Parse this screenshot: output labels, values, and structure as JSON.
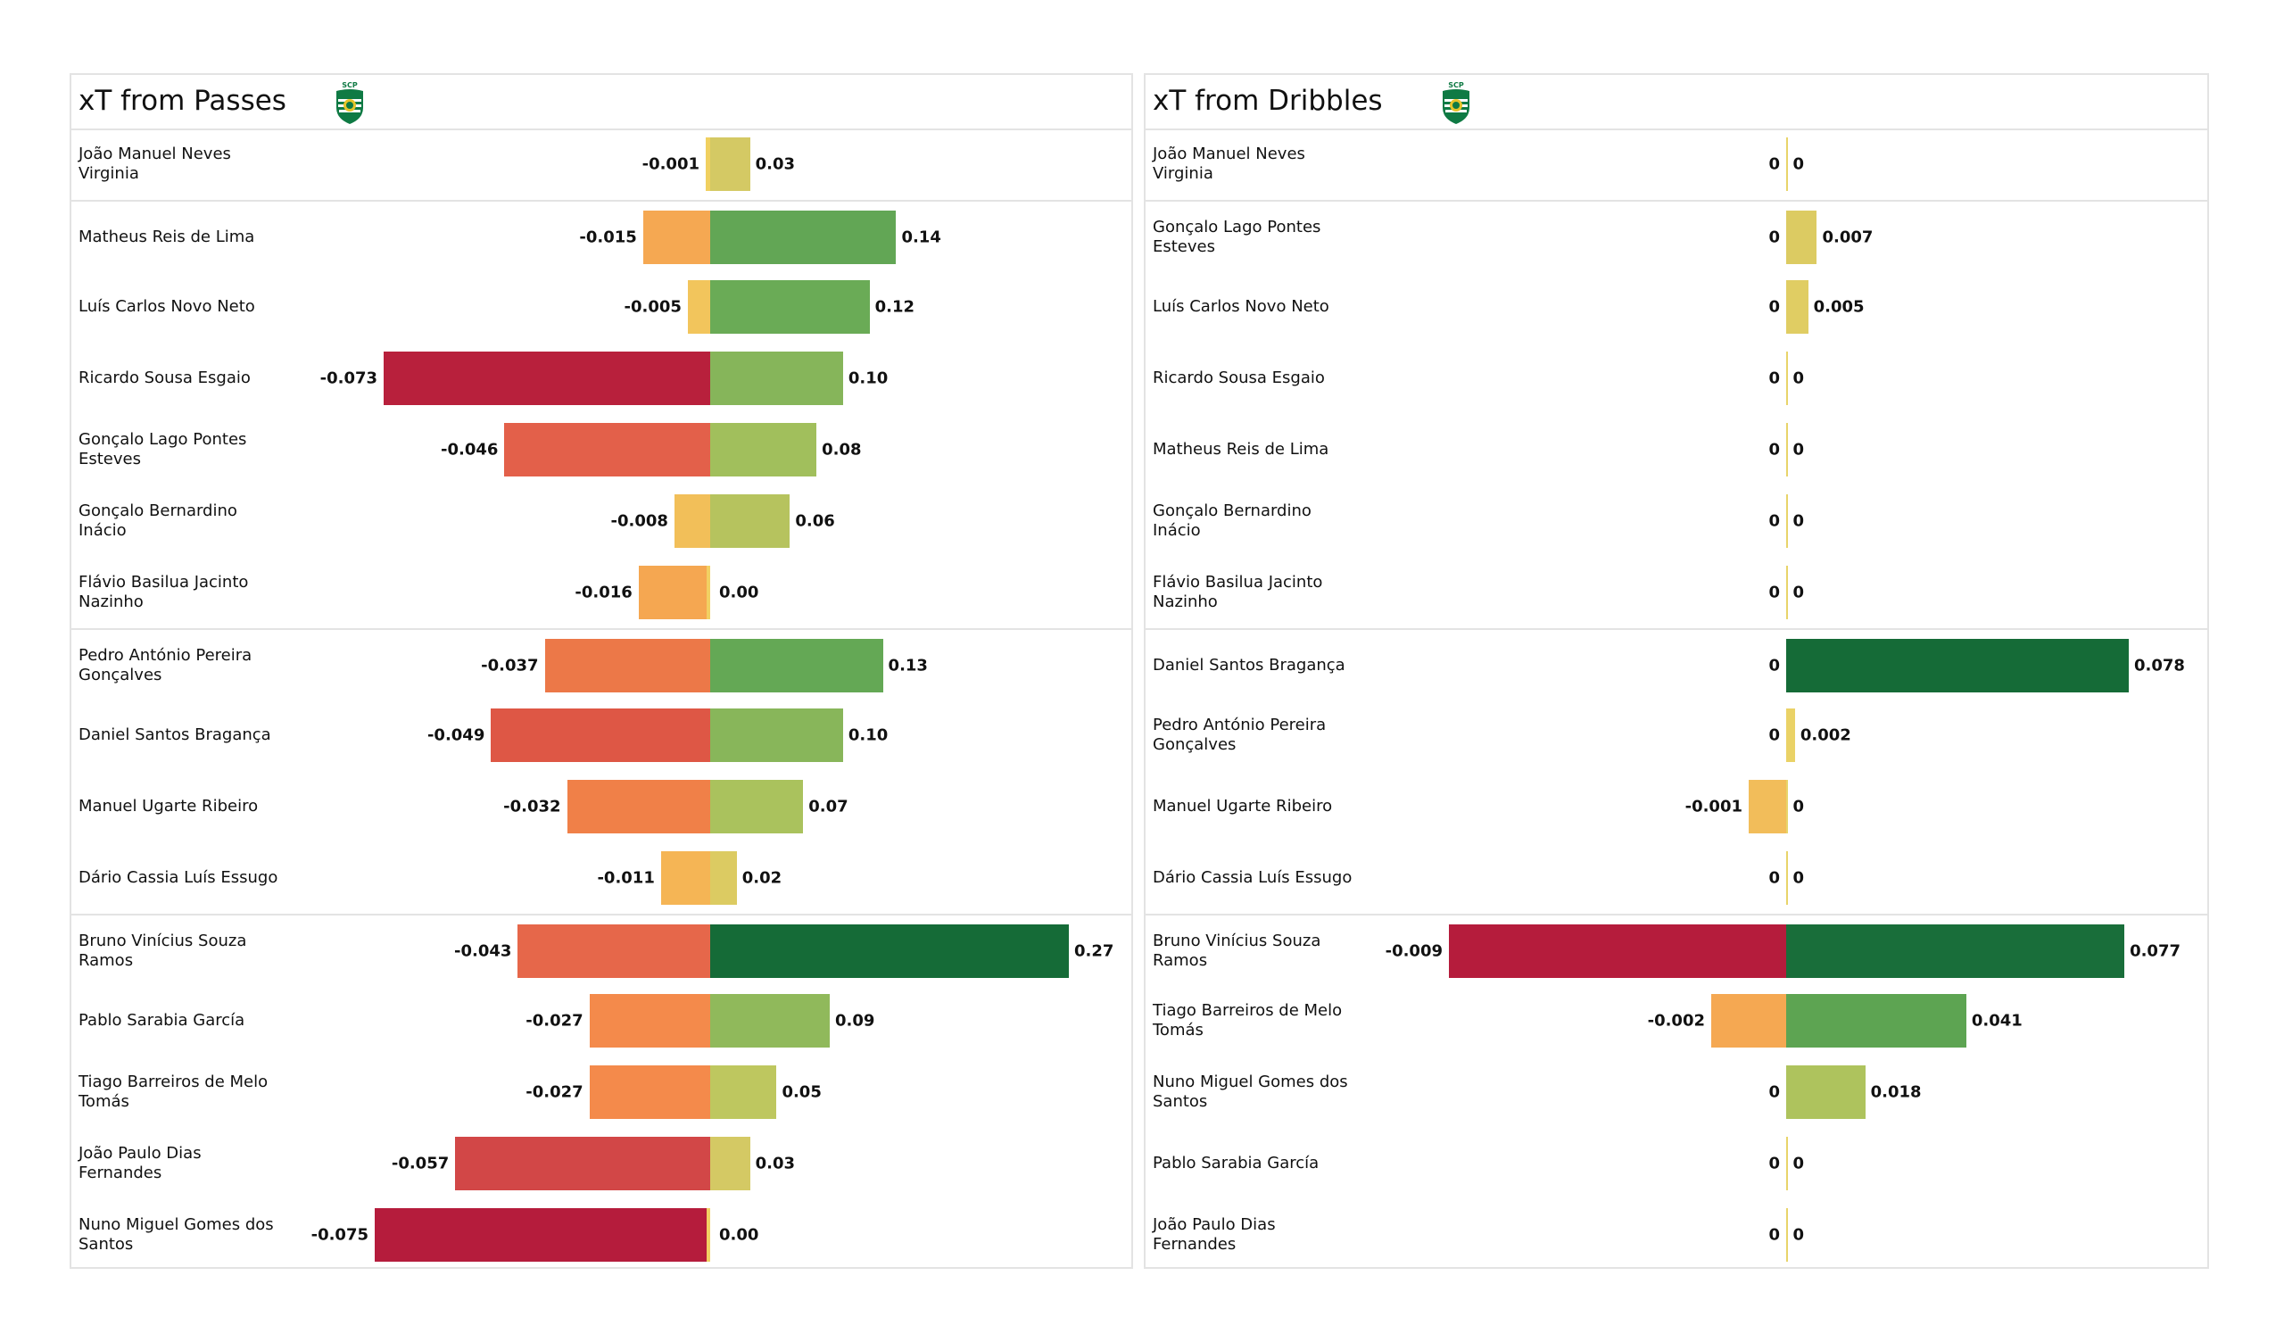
{
  "chart_data": [
    {
      "type": "bar",
      "title": "xT from Passes",
      "logo": "sporting-cp-crest-icon",
      "orientation": "horizontal-diverging",
      "group_breaks_after": [
        0,
        6,
        10
      ],
      "rows": [
        {
          "player": "João Manuel Neves\nVirginia",
          "negative": -0.001,
          "negative_label": "-0.001",
          "positive": 0.03,
          "positive_label": "0.03",
          "neg_color": "#f0d060",
          "pos_color": "#d4c964"
        },
        {
          "player": "Matheus Reis de Lima",
          "negative": -0.015,
          "negative_label": "-0.015",
          "positive": 0.14,
          "positive_label": "0.14",
          "neg_color": "#f5a852",
          "pos_color": "#62a655"
        },
        {
          "player": "Luís Carlos Novo Neto",
          "negative": -0.005,
          "negative_label": "-0.005",
          "positive": 0.12,
          "positive_label": "0.12",
          "neg_color": "#f2c55c",
          "pos_color": "#6aab56"
        },
        {
          "player": "Ricardo Sousa Esgaio",
          "negative": -0.073,
          "negative_label": "-0.073",
          "positive": 0.1,
          "positive_label": "0.10",
          "neg_color": "#b8203c",
          "pos_color": "#86b55a"
        },
        {
          "player": "Gonçalo Lago Pontes\nEsteves",
          "negative": -0.046,
          "negative_label": "-0.046",
          "positive": 0.08,
          "positive_label": "0.08",
          "neg_color": "#e3604a",
          "pos_color": "#a1bf5c"
        },
        {
          "player": "Gonçalo Bernardino\nInácio",
          "negative": -0.008,
          "negative_label": "-0.008",
          "positive": 0.06,
          "positive_label": "0.06",
          "neg_color": "#f2bf59",
          "pos_color": "#b6c35e"
        },
        {
          "player": "Flávio Basilua Jacinto\nNazinho",
          "negative": -0.016,
          "negative_label": "-0.016",
          "positive": 0.0,
          "positive_label": "0.00",
          "neg_color": "#f5a751",
          "pos_color": "#f2d063"
        },
        {
          "player": "Pedro António Pereira\nGonçalves",
          "negative": -0.037,
          "negative_label": "-0.037",
          "positive": 0.13,
          "positive_label": "0.13",
          "neg_color": "#ec7848",
          "pos_color": "#64a855"
        },
        {
          "player": "Daniel Santos Bragança",
          "negative": -0.049,
          "negative_label": "-0.049",
          "positive": 0.1,
          "positive_label": "0.10",
          "neg_color": "#de5745",
          "pos_color": "#88b65a"
        },
        {
          "player": "Manuel Ugarte Ribeiro",
          "negative": -0.032,
          "negative_label": "-0.032",
          "positive": 0.07,
          "positive_label": "0.07",
          "neg_color": "#f08048",
          "pos_color": "#aac25d"
        },
        {
          "player": "Dário Cassia Luís Essugo",
          "negative": -0.011,
          "negative_label": "-0.011",
          "positive": 0.02,
          "positive_label": "0.02",
          "neg_color": "#f5b555",
          "pos_color": "#dccb62"
        },
        {
          "player": "Bruno Vinícius Souza\nRamos",
          "negative": -0.043,
          "negative_label": "-0.043",
          "positive": 0.27,
          "positive_label": "0.27",
          "neg_color": "#e6674a",
          "pos_color": "#156b37"
        },
        {
          "player": "Pablo Sarabia García",
          "negative": -0.027,
          "negative_label": "-0.027",
          "positive": 0.09,
          "positive_label": "0.09",
          "neg_color": "#f48a4b",
          "pos_color": "#90b95b"
        },
        {
          "player": "Tiago Barreiros de Melo\nTomás",
          "negative": -0.027,
          "negative_label": "-0.027",
          "positive": 0.05,
          "positive_label": "0.05",
          "neg_color": "#f48a4b",
          "pos_color": "#bec75f"
        },
        {
          "player": "João Paulo Dias\nFernandes",
          "negative": -0.057,
          "negative_label": "-0.057",
          "positive": 0.03,
          "positive_label": "0.03",
          "neg_color": "#d24747",
          "pos_color": "#d4c964"
        },
        {
          "player": "Nuno Miguel Gomes dos\nSantos",
          "negative": -0.075,
          "negative_label": "-0.075",
          "positive": 0.0,
          "positive_label": "0.00",
          "neg_color": "#b51c3c",
          "pos_color": "#f2d063"
        }
      ]
    },
    {
      "type": "bar",
      "title": "xT from Dribbles",
      "logo": "sporting-cp-crest-icon",
      "orientation": "horizontal-diverging",
      "group_breaks_after": [
        0,
        6,
        10
      ],
      "rows": [
        {
          "player": "João Manuel Neves\nVirginia",
          "negative": 0,
          "negative_label": "0",
          "positive": 0,
          "positive_label": "0",
          "neg_color": "#e8d46a",
          "pos_color": "#e8d46a"
        },
        {
          "player": "Gonçalo Lago Pontes\nEsteves",
          "negative": 0,
          "negative_label": "0",
          "positive": 0.007,
          "positive_label": "0.007",
          "neg_color": "#e8d46a",
          "pos_color": "#dccb62"
        },
        {
          "player": "Luís Carlos Novo Neto",
          "negative": 0,
          "negative_label": "0",
          "positive": 0.005,
          "positive_label": "0.005",
          "neg_color": "#e8d46a",
          "pos_color": "#e0cd63"
        },
        {
          "player": "Ricardo Sousa Esgaio",
          "negative": 0,
          "negative_label": "0",
          "positive": 0,
          "positive_label": "0",
          "neg_color": "#e8d46a",
          "pos_color": "#e8d46a"
        },
        {
          "player": "Matheus Reis de Lima",
          "negative": 0,
          "negative_label": "0",
          "positive": 0,
          "positive_label": "0",
          "neg_color": "#e8d46a",
          "pos_color": "#e8d46a"
        },
        {
          "player": "Gonçalo Bernardino\nInácio",
          "negative": 0,
          "negative_label": "0",
          "positive": 0,
          "positive_label": "0",
          "neg_color": "#e8d46a",
          "pos_color": "#e8d46a"
        },
        {
          "player": "Flávio Basilua Jacinto\nNazinho",
          "negative": 0,
          "negative_label": "0",
          "positive": 0,
          "positive_label": "0",
          "neg_color": "#e8d46a",
          "pos_color": "#e8d46a"
        },
        {
          "player": "Daniel Santos Bragança",
          "negative": 0,
          "negative_label": "0",
          "positive": 0.078,
          "positive_label": "0.078",
          "neg_color": "#e8d46a",
          "pos_color": "#156b37"
        },
        {
          "player": "Pedro António Pereira\nGonçalves",
          "negative": 0,
          "negative_label": "0",
          "positive": 0.002,
          "positive_label": "0.002",
          "neg_color": "#e8d46a",
          "pos_color": "#ead266"
        },
        {
          "player": "Manuel Ugarte Ribeiro",
          "negative": -0.001,
          "negative_label": "-0.001",
          "positive": 0,
          "positive_label": "0",
          "neg_color": "#f2bd5a",
          "pos_color": "#e8d46a"
        },
        {
          "player": "Dário Cassia Luís Essugo",
          "negative": 0,
          "negative_label": "0",
          "positive": 0,
          "positive_label": "0",
          "neg_color": "#e8d46a",
          "pos_color": "#e8d46a"
        },
        {
          "player": "Bruno Vinícius Souza\nRamos",
          "negative": -0.009,
          "negative_label": "-0.009",
          "positive": 0.077,
          "positive_label": "0.077",
          "neg_color": "#b51c3c",
          "pos_color": "#196e3a"
        },
        {
          "player": "Tiago Barreiros de Melo\nTomás",
          "negative": -0.002,
          "negative_label": "-0.002",
          "positive": 0.041,
          "positive_label": "0.041",
          "neg_color": "#f5a852",
          "pos_color": "#5da452"
        },
        {
          "player": "Nuno Miguel Gomes dos\nSantos",
          "negative": 0,
          "negative_label": "0",
          "positive": 0.018,
          "positive_label": "0.018",
          "neg_color": "#e8d46a",
          "pos_color": "#aec35d"
        },
        {
          "player": "Pablo Sarabia García",
          "negative": 0,
          "negative_label": "0",
          "positive": 0,
          "positive_label": "0",
          "neg_color": "#e8d46a",
          "pos_color": "#e8d46a"
        },
        {
          "player": "João Paulo Dias\nFernandes",
          "negative": 0,
          "negative_label": "0",
          "positive": 0,
          "positive_label": "0",
          "neg_color": "#e8d46a",
          "pos_color": "#e8d46a"
        }
      ]
    }
  ]
}
